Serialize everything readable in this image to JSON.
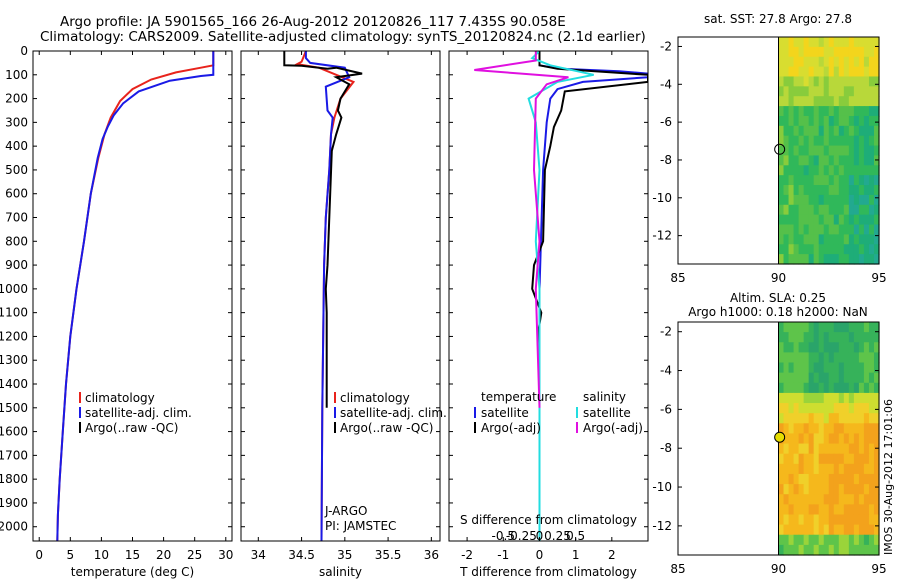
{
  "header": {
    "line1": "Argo profile: JA 5901565_166 26-Aug-2012 20120826_117 7.435S 90.058E",
    "line2": "Climatology: CARS2009. Satellite-adjusted climatology: synTS_20120824.nc (2.1d earlier)"
  },
  "footer_stamp": "IMOS 30-Aug-2012 17:01:06",
  "colors": {
    "climatology": "#e8231c",
    "satellite": "#1a1ae6",
    "argo": "#000000",
    "satellite_salinity": "#22dde0",
    "argo_salinity": "#e010e0",
    "circle": "#e5dd00"
  },
  "chart_data": [
    {
      "id": "temperature-profile",
      "type": "line",
      "xlabel": "temperature (deg C)",
      "ylabel": "",
      "xlim": [
        -1,
        31
      ],
      "ylim": [
        2060,
        0
      ],
      "xticks": [
        0,
        5,
        10,
        15,
        20,
        25,
        30
      ],
      "yticks": [
        0,
        100,
        200,
        300,
        400,
        500,
        600,
        700,
        800,
        900,
        1000,
        1100,
        1200,
        1300,
        1400,
        1500,
        1600,
        1700,
        1800,
        1900,
        2000
      ],
      "legend": [
        "climatology",
        "satellite-adj. clim.",
        "Argo(..raw -QC)"
      ],
      "series": [
        {
          "name": "climatology",
          "color_key": "climatology",
          "points": [
            [
              28,
              0
            ],
            [
              28,
              60
            ],
            [
              26,
              70
            ],
            [
              22,
              90
            ],
            [
              18,
              120
            ],
            [
              15,
              160
            ],
            [
              13,
              210
            ],
            [
              11.5,
              280
            ],
            [
              10.5,
              350
            ],
            [
              9.5,
              450
            ],
            [
              8.3,
              600
            ],
            [
              7.2,
              800
            ],
            [
              6,
              1000
            ],
            [
              5,
              1200
            ],
            [
              4.3,
              1400
            ],
            [
              3.8,
              1600
            ],
            [
              3.3,
              1800
            ],
            [
              3,
              1950
            ],
            [
              2.9,
              2060
            ]
          ]
        },
        {
          "name": "satellite-adj. clim.",
          "color_key": "satellite",
          "points": [
            [
              28,
              0
            ],
            [
              28,
              100
            ],
            [
              26,
              105
            ],
            [
              21,
              125
            ],
            [
              16,
              170
            ],
            [
              13.5,
              220
            ],
            [
              12,
              270
            ],
            [
              11,
              320
            ],
            [
              10.2,
              370
            ],
            [
              9.4,
              450
            ],
            [
              8.3,
              600
            ],
            [
              7.2,
              800
            ],
            [
              6,
              1000
            ],
            [
              5,
              1200
            ],
            [
              4.3,
              1400
            ],
            [
              3.8,
              1600
            ],
            [
              3.3,
              1800
            ],
            [
              3,
              1950
            ],
            [
              2.9,
              2060
            ]
          ]
        }
      ]
    },
    {
      "id": "salinity-profile",
      "type": "line",
      "xlabel": "salinity",
      "xlim": [
        33.8,
        36.1
      ],
      "ylim": [
        2060,
        0
      ],
      "xticks": [
        34,
        34.5,
        35,
        35.5,
        36
      ],
      "xticklabels": [
        "34",
        "34.5",
        "35",
        "35.5",
        "36"
      ],
      "legend": [
        "climatology",
        "satellite-adj. clim.",
        "Argo(..raw -QC)"
      ],
      "annotations": [
        "J-ARGO",
        "PI: JAMSTEC"
      ],
      "series": [
        {
          "name": "climatology",
          "color_key": "climatology",
          "points": [
            [
              34.55,
              0
            ],
            [
              34.5,
              45
            ],
            [
              34.45,
              55
            ],
            [
              34.7,
              70
            ],
            [
              34.9,
              100
            ],
            [
              35.1,
              130
            ],
            [
              34.95,
              200
            ],
            [
              34.88,
              280
            ],
            [
              34.84,
              350
            ],
            [
              34.82,
              500
            ],
            [
              34.78,
              700
            ],
            [
              34.76,
              900
            ],
            [
              34.75,
              1200
            ],
            [
              34.74,
              1500
            ],
            [
              34.73,
              2060
            ]
          ]
        },
        {
          "name": "satellite-adj. clim.",
          "color_key": "satellite",
          "points": [
            [
              34.55,
              0
            ],
            [
              34.55,
              30
            ],
            [
              34.6,
              50
            ],
            [
              35,
              70
            ],
            [
              35.05,
              110
            ],
            [
              34.78,
              150
            ],
            [
              34.8,
              250
            ],
            [
              34.86,
              280
            ],
            [
              34.84,
              350
            ],
            [
              34.82,
              500
            ],
            [
              34.78,
              700
            ],
            [
              34.76,
              900
            ],
            [
              34.75,
              1200
            ],
            [
              34.74,
              1500
            ],
            [
              34.73,
              2060
            ]
          ]
        },
        {
          "name": "Argo(..raw -QC)",
          "color_key": "argo",
          "points": [
            [
              34.3,
              0
            ],
            [
              34.3,
              60
            ],
            [
              34.5,
              62
            ],
            [
              34.8,
              75
            ],
            [
              34.9,
              70
            ],
            [
              35.2,
              95
            ],
            [
              34.9,
              110
            ],
            [
              35.05,
              140
            ],
            [
              34.95,
              200
            ],
            [
              34.92,
              250
            ],
            [
              34.96,
              280
            ],
            [
              34.9,
              350
            ],
            [
              34.85,
              420
            ],
            [
              34.8,
              900
            ],
            [
              34.78,
              1000
            ],
            [
              34.79,
              1100
            ],
            [
              34.79,
              1500
            ]
          ]
        }
      ]
    },
    {
      "id": "difference-profile",
      "type": "line",
      "xlabel": "T difference from climatology",
      "xlim": [
        -2.5,
        3.0
      ],
      "ylim": [
        2060,
        0
      ],
      "xticks": [
        -2,
        -1,
        0,
        1,
        2
      ],
      "xticklabels": [
        "-2",
        "-1",
        "0",
        "1",
        "2"
      ],
      "top_label": "S difference from climatology",
      "s_ticklabels": [
        "-0.5",
        "-0.25",
        "0",
        "0.25",
        "0.5"
      ],
      "legend_groups": [
        {
          "title": "temperature",
          "items": [
            "satellite",
            "Argo(-adj)"
          ]
        },
        {
          "title": "salinity",
          "items": [
            "satellite",
            "Argo(-adj)"
          ]
        }
      ],
      "series": [
        {
          "name": "temperature satellite",
          "color_key": "satellite",
          "points": [
            [
              0,
              0
            ],
            [
              0,
              60
            ],
            [
              0.6,
              75
            ],
            [
              2.2,
              85
            ],
            [
              3,
              95
            ],
            [
              3,
              110
            ],
            [
              1.2,
              130
            ],
            [
              0.5,
              160
            ],
            [
              0.3,
              200
            ],
            [
              0.2,
              300
            ],
            [
              0.1,
              500
            ],
            [
              0,
              1000
            ],
            [
              0,
              2060
            ]
          ]
        },
        {
          "name": "temperature Argo(-adj)",
          "color_key": "argo",
          "points": [
            [
              0,
              0
            ],
            [
              0,
              60
            ],
            [
              0.5,
              75
            ],
            [
              2,
              90
            ],
            [
              3,
              100
            ],
            [
              3,
              130
            ],
            [
              0.7,
              170
            ],
            [
              0.6,
              250
            ],
            [
              0.4,
              320
            ],
            [
              0.3,
              400
            ],
            [
              0.15,
              500
            ],
            [
              0.1,
              800
            ],
            [
              -0.15,
              900
            ],
            [
              -0.2,
              1000
            ],
            [
              0.05,
              1100
            ],
            [
              -0.05,
              1200
            ],
            [
              0,
              1400
            ],
            [
              0,
              1500
            ]
          ]
        },
        {
          "name": "salinity satellite",
          "color_key": "satellite_salinity",
          "points": [
            [
              0,
              0
            ],
            [
              -0.2,
              30
            ],
            [
              0.3,
              60
            ],
            [
              1.5,
              100
            ],
            [
              0.5,
              130
            ],
            [
              -0.3,
              200
            ],
            [
              -0.1,
              300
            ],
            [
              0,
              500
            ],
            [
              -0.1,
              800
            ],
            [
              0,
              1000
            ],
            [
              0,
              2060
            ]
          ]
        },
        {
          "name": "salinity Argo(-adj)",
          "color_key": "argo_salinity",
          "points": [
            [
              -0.1,
              0
            ],
            [
              -0.1,
              40
            ],
            [
              -1.8,
              80
            ],
            [
              -0.5,
              95
            ],
            [
              0.8,
              110
            ],
            [
              0.2,
              140
            ],
            [
              -0.1,
              200
            ],
            [
              -0.15,
              500
            ],
            [
              0,
              800
            ],
            [
              -0.1,
              1000
            ],
            [
              0,
              1500
            ]
          ]
        }
      ]
    },
    {
      "id": "sst-map",
      "type": "heatmap",
      "title": "sat. SST: 27.8 Argo: 27.8",
      "xlim": [
        85,
        95
      ],
      "ylim": [
        -13.5,
        -1.5
      ],
      "xticks": [
        85,
        90,
        95
      ],
      "yticks": [
        -2,
        -4,
        -6,
        -8,
        -10,
        -12
      ],
      "marker": {
        "lon": 90.058,
        "lat": -7.435
      },
      "palette": [
        "#f3d51c",
        "#d8dd30",
        "#b8d83a",
        "#88cc3c",
        "#55c04a",
        "#30b85a",
        "#1ead78",
        "#22a990"
      ]
    },
    {
      "id": "sla-map",
      "type": "heatmap",
      "title_line1": "Altim. SLA: 0.25",
      "title_line2": "Argo h1000: 0.18 h2000: NaN",
      "xlim": [
        85,
        95
      ],
      "ylim": [
        -13.5,
        -1.5
      ],
      "xticks": [
        85,
        90,
        95
      ],
      "yticks": [
        -2,
        -4,
        -6,
        -8,
        -10,
        -12
      ],
      "marker": {
        "lon": 90.058,
        "lat": -7.435
      },
      "palette": [
        "#f3a21c",
        "#f5b81c",
        "#f0d02a",
        "#cede30",
        "#9ad43a",
        "#5ec44a",
        "#36b25a",
        "#2aa46a"
      ]
    }
  ]
}
